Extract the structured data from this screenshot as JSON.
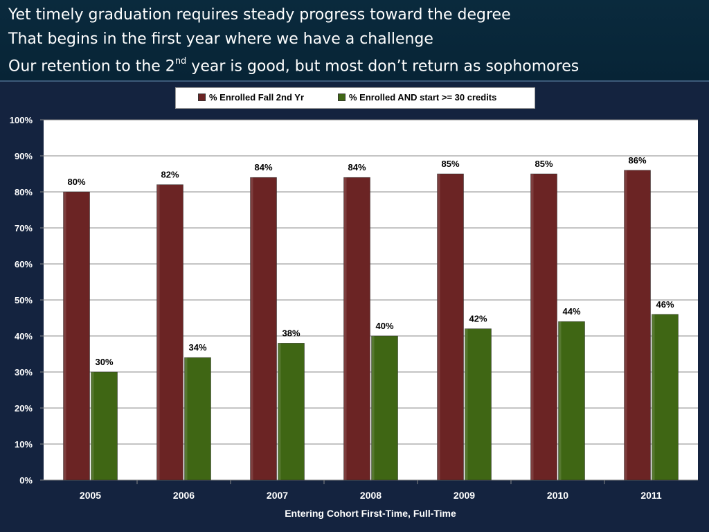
{
  "slide": {
    "title_lines": [
      "Yet timely graduation requires steady progress toward the degree",
      "That begins in the first year where we have a challenge"
    ],
    "title_line3_prefix": "Our retention to the 2",
    "title_line3_sup": "nd",
    "title_line3_suffix": " year is good, but most don’t return as sophomores"
  },
  "chart_data": {
    "type": "bar",
    "categories": [
      "2005",
      "2006",
      "2007",
      "2008",
      "2009",
      "2010",
      "2011"
    ],
    "series": [
      {
        "name": "% Enrolled Fall 2nd Yr",
        "values": [
          80,
          82,
          84,
          84,
          85,
          85,
          86
        ],
        "labels": [
          "80%",
          "82%",
          "84%",
          "84%",
          "85%",
          "85%",
          "86%"
        ],
        "color": "#6b2424"
      },
      {
        "name": "% Enrolled AND start >= 30 credits",
        "values": [
          30,
          34,
          38,
          40,
          42,
          44,
          46
        ],
        "labels": [
          "30%",
          "34%",
          "38%",
          "40%",
          "42%",
          "44%",
          "46%"
        ],
        "color": "#3f6614"
      }
    ],
    "xlabel": "Entering Cohort First-Time, Full-Time",
    "ylabel": "",
    "ylim": [
      0,
      100
    ],
    "yticks": [
      "0%",
      "10%",
      "20%",
      "30%",
      "40%",
      "50%",
      "60%",
      "70%",
      "80%",
      "90%",
      "100%"
    ],
    "grid": true,
    "legend_position": "top"
  }
}
